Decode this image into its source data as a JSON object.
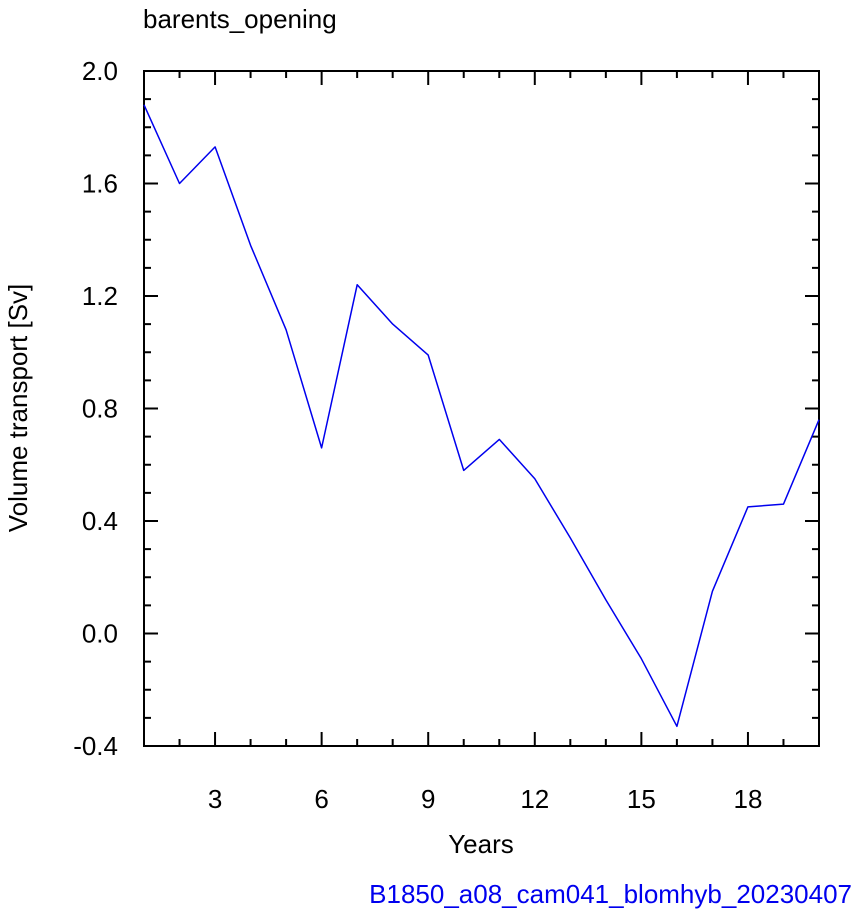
{
  "chart_data": {
    "type": "line",
    "title": "barents_opening",
    "xlabel": "Years",
    "ylabel": "Volume transport [Sv]",
    "xlim": [
      1,
      20
    ],
    "ylim": [
      -0.4,
      2.0
    ],
    "xticks": [
      3,
      6,
      9,
      12,
      15,
      18
    ],
    "yticks": [
      -0.4,
      0.0,
      0.4,
      0.8,
      1.2,
      1.6,
      2.0
    ],
    "ytick_labels": [
      "-0.4",
      "0.0",
      "0.4",
      "0.8",
      "1.2",
      "1.6",
      "2.0"
    ],
    "grid": false,
    "series": [
      {
        "color": "#0000ee",
        "x": [
          1,
          2,
          3,
          4,
          5,
          6,
          7,
          8,
          9,
          10,
          11,
          12,
          13,
          14,
          15,
          16,
          17,
          18,
          19,
          20
        ],
        "values": [
          1.88,
          1.6,
          1.73,
          1.38,
          1.08,
          0.66,
          1.24,
          1.1,
          0.99,
          0.58,
          0.69,
          0.55,
          0.34,
          0.12,
          -0.09,
          -0.33,
          0.15,
          0.45,
          0.46,
          0.76
        ]
      }
    ],
    "caption": "B1850_a08_cam041_blomhyb_20230407",
    "caption_color": "#0000ee"
  }
}
